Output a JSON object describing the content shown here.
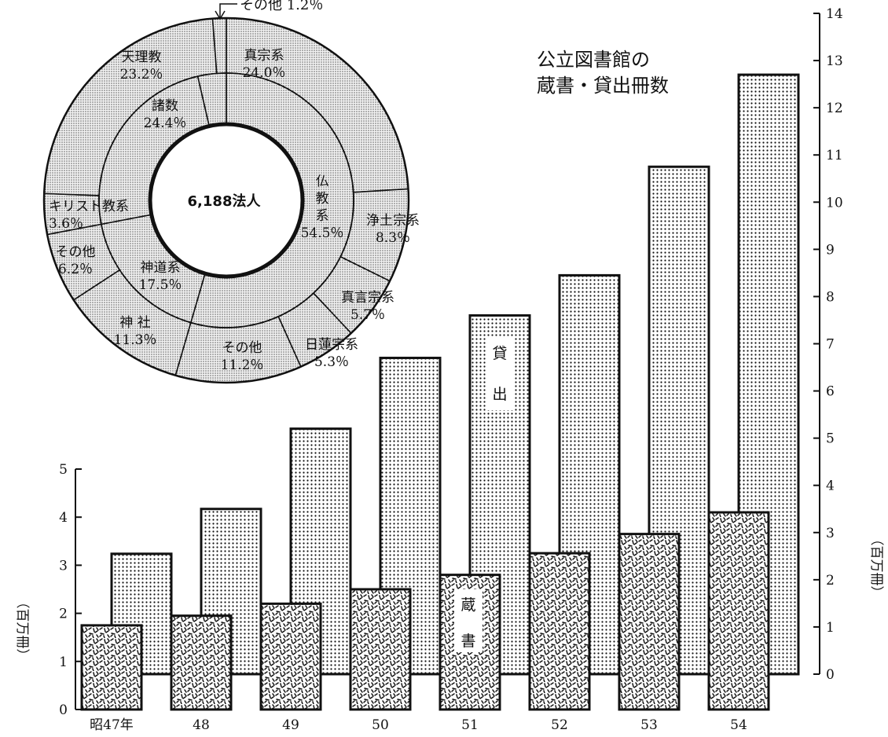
{
  "chart_data": [
    {
      "type": "pie",
      "center_label": "6,188法人",
      "inner": [
        {
          "name_lines": [
            "仏",
            "教",
            "系"
          ],
          "value_label": "54.5％",
          "value": 54.5
        },
        {
          "name_lines": [
            "神道系"
          ],
          "value_label": "17.5％",
          "value": 17.5
        },
        {
          "name_lines": [
            "諸数"
          ],
          "value_label": "24.4％",
          "value": 24.4
        },
        {
          "name_lines": [
            "キリスト教系"
          ],
          "value_label": "3.6％",
          "value": 3.6
        }
      ],
      "outer": [
        {
          "name_lines": [
            "真宗系"
          ],
          "value_label": "24.0％",
          "value": 24.0
        },
        {
          "name_lines": [
            "浄土宗系"
          ],
          "value_label": "8.3％",
          "value": 8.3
        },
        {
          "name_lines": [
            "真言宗系"
          ],
          "value_label": "5.7％",
          "value": 5.7
        },
        {
          "name_lines": [
            "日蓮宗系"
          ],
          "value_label": "5.3％",
          "value": 5.3
        },
        {
          "name_lines": [
            "その他"
          ],
          "value_label": "11.2％",
          "value": 11.2
        },
        {
          "name_lines": [
            "神 社"
          ],
          "value_label": "11.3％",
          "value": 11.3
        },
        {
          "name_lines": [
            "その他"
          ],
          "value_label": "6.2％",
          "value": 6.2
        },
        {
          "name_lines": [
            "キリスト教系"
          ],
          "value_label": "3.6％",
          "value": 3.6
        },
        {
          "name_lines": [
            "天理教"
          ],
          "value_label": "23.2％",
          "value": 23.2
        },
        {
          "name_lines": [
            "その他"
          ],
          "value_label": "1.2％",
          "value": 1.2
        }
      ],
      "callout_label": "その他 1.2％"
    },
    {
      "type": "bar",
      "title_lines": [
        "公立図書館の",
        "蔵書・貸出冊数"
      ],
      "categories": [
        "昭47年",
        "48",
        "49",
        "50",
        "51",
        "52",
        "53",
        "54"
      ],
      "series": [
        {
          "name": "蔵書",
          "name_chars": [
            "蔵",
            "書"
          ],
          "axis": "left",
          "values": [
            1.75,
            1.95,
            2.2,
            2.5,
            2.8,
            3.25,
            3.65,
            4.1
          ]
        },
        {
          "name": "貸出",
          "name_chars": [
            "貸",
            "出"
          ],
          "axis": "right",
          "values": [
            2.55,
            3.5,
            5.2,
            6.7,
            7.6,
            8.45,
            10.75,
            12.7
          ]
        }
      ],
      "left_axis": {
        "label": "（百万冊）",
        "ylim": [
          0,
          5
        ],
        "ticks": [
          "0",
          "1",
          "2",
          "3",
          "4",
          "5"
        ]
      },
      "right_axis": {
        "label": "（百万冊）",
        "ylim": [
          0,
          14
        ],
        "ticks": [
          "0",
          "1",
          "2",
          "3",
          "4",
          "5",
          "6",
          "7",
          "8",
          "9",
          "10",
          "11",
          "12",
          "13",
          "14"
        ]
      }
    }
  ]
}
